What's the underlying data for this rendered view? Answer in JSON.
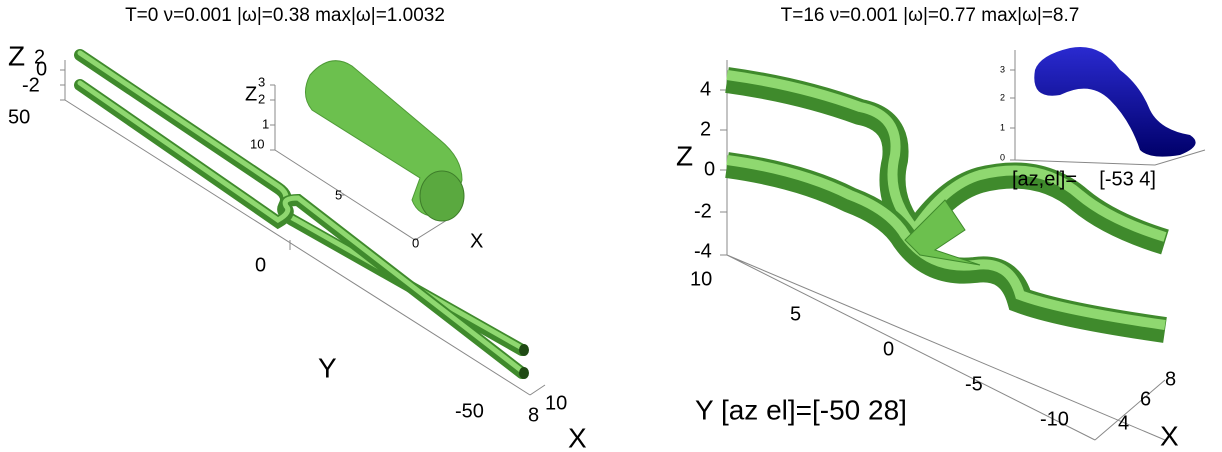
{
  "panels": [
    {
      "title": "T=0  ν=0.001  |ω|=0.38  max|ω|=1.0032",
      "z_label": "Z",
      "z_ticks": [
        "2",
        "0",
        "-2"
      ],
      "y_label": "Y",
      "y_ticks": [
        "50",
        "0",
        "-50"
      ],
      "x_label": "X",
      "x_ticks": [
        "8",
        "10"
      ],
      "inset": {
        "z_label": "Z",
        "z_ticks": [
          "3",
          "2",
          "1"
        ],
        "y_ticks": [
          "10",
          "5",
          "0"
        ],
        "x_label": "X"
      }
    },
    {
      "title": "T=16  ν=0.001  |ω|=0.77  max|ω|=8.7",
      "z_label": "Z",
      "z_ticks": [
        "4",
        "2",
        "0",
        "-2",
        "-4"
      ],
      "y_label": "Y [az el]=[-50 28]",
      "y_ticks": [
        "10",
        "5",
        "0",
        "-5",
        "-10"
      ],
      "x_label": "X",
      "x_ticks": [
        "4",
        "6",
        "8"
      ],
      "inset": {
        "z_ticks": [
          "3",
          "2",
          "1",
          "0"
        ],
        "annotation": "[az,el]=    [-53 4]"
      }
    }
  ]
}
